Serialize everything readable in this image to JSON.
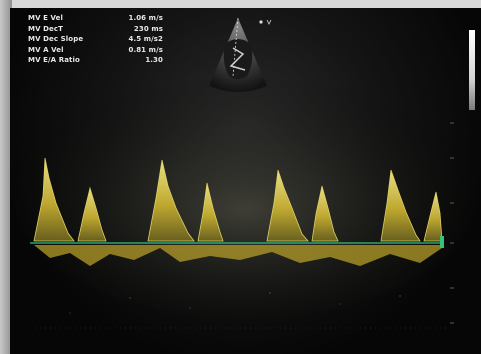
{
  "measurements": [
    {
      "label": "MV E Vel",
      "value": "1.06 m/s"
    },
    {
      "label": "MV DecT",
      "value": "230 ms"
    },
    {
      "label": "MV Dec Slope",
      "value": "4.5 m/s2"
    },
    {
      "label": "MV A Vel",
      "value": "0.81 m/s"
    },
    {
      "label": "MV E/A Ratio",
      "value": "1.30"
    }
  ],
  "colors": {
    "trace": "#d7c23a",
    "trace_bright": "#f2ea8a",
    "baseline": "#33c37a",
    "text": "#e8e8e8"
  },
  "icons": {
    "sector": "echo-sector-thumbnail-icon",
    "scale": "grayscale-bar-icon"
  }
}
